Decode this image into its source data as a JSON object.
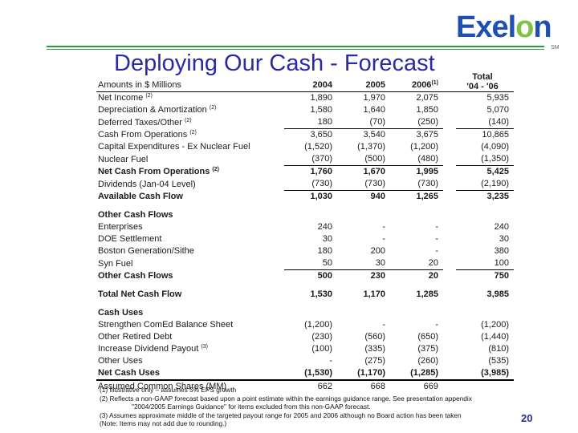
{
  "logo": {
    "text": "Exelon",
    "tm": "SM"
  },
  "title": "Deploying Our Cash - Forecast",
  "columns": {
    "label": "Amounts in $ Millions",
    "c2004": "2004",
    "c2005": "2005",
    "c2006": "2006",
    "c2006_note": "(1)",
    "total_line1": "Total",
    "total_line2": "'04 - '06"
  },
  "rows": [
    {
      "label": "Net Income",
      "note": "(2)",
      "v2004": "1,890",
      "v2005": "1,970",
      "v2006": "2,075",
      "total": "5,935"
    },
    {
      "label": "Depreciation & Amortization",
      "note": "(2)",
      "v2004": "1,580",
      "v2005": "1,640",
      "v2006": "1,850",
      "total": "5,070"
    },
    {
      "label": "Deferred Taxes/Other",
      "note": "(2)",
      "v2004": "180",
      "v2005": "(70)",
      "v2006": "(250)",
      "total": "(140)"
    },
    {
      "label": "Cash From Operations",
      "note": "(2)",
      "v2004": "3,650",
      "v2005": "3,540",
      "v2006": "3,675",
      "total": "10,865"
    },
    {
      "label": "Capital Expenditures - Ex Nuclear Fuel",
      "note": "",
      "v2004": "(1,520)",
      "v2005": "(1,370)",
      "v2006": "(1,200)",
      "total": "(4,090)"
    },
    {
      "label": "Nuclear Fuel",
      "note": "",
      "v2004": "(370)",
      "v2005": "(500)",
      "v2006": "(480)",
      "total": "(1,350)"
    },
    {
      "label": "Net Cash From Operations",
      "note": "(2)",
      "v2004": "1,760",
      "v2005": "1,670",
      "v2006": "1,995",
      "total": "5,425"
    },
    {
      "label": "Dividends (Jan-04 Level)",
      "note": "",
      "v2004": "(730)",
      "v2005": "(730)",
      "v2006": "(730)",
      "total": "(2,190)"
    },
    {
      "label": "Available Cash Flow",
      "note": "",
      "v2004": "1,030",
      "v2005": "940",
      "v2006": "1,265",
      "total": "3,235"
    },
    {
      "label": "Other Cash Flows",
      "note": "",
      "v2004": "",
      "v2005": "",
      "v2006": "",
      "total": ""
    },
    {
      "label": "Enterprises",
      "note": "",
      "v2004": "240",
      "v2005": "-",
      "v2006": "-",
      "total": "240"
    },
    {
      "label": "DOE Settlement",
      "note": "",
      "v2004": "30",
      "v2005": "-",
      "v2006": "-",
      "total": "30"
    },
    {
      "label": "Boston Generation/Sithe",
      "note": "",
      "v2004": "180",
      "v2005": "200",
      "v2006": "-",
      "total": "380"
    },
    {
      "label": "Syn Fuel",
      "note": "",
      "v2004": "50",
      "v2005": "30",
      "v2006": "20",
      "total": "100"
    },
    {
      "label": "Other Cash Flows",
      "note": "",
      "v2004": "500",
      "v2005": "230",
      "v2006": "20",
      "total": "750"
    },
    {
      "label": "Total Net Cash Flow",
      "note": "",
      "v2004": "1,530",
      "v2005": "1,170",
      "v2006": "1,285",
      "total": "3,985"
    },
    {
      "label": "Cash Uses",
      "note": "",
      "v2004": "",
      "v2005": "",
      "v2006": "",
      "total": ""
    },
    {
      "label": "Strengthen ComEd Balance Sheet",
      "note": "",
      "v2004": "(1,200)",
      "v2005": "-",
      "v2006": "-",
      "total": "(1,200)"
    },
    {
      "label": "Other Retired Debt",
      "note": "",
      "v2004": "(230)",
      "v2005": "(560)",
      "v2006": "(650)",
      "total": "(1,440)"
    },
    {
      "label": "Increase Dividend Payout",
      "note": "(3)",
      "v2004": "(100)",
      "v2005": "(335)",
      "v2006": "(375)",
      "total": "(810)"
    },
    {
      "label": "Other Uses",
      "note": "",
      "v2004": "-",
      "v2005": "(275)",
      "v2006": "(260)",
      "total": "(535)"
    },
    {
      "label": "Net Cash Uses",
      "note": "",
      "v2004": "(1,530)",
      "v2005": "(1,170)",
      "v2006": "(1,285)",
      "total": "(3,985)"
    },
    {
      "label": "Assumed Common Shares (MM)",
      "note": "",
      "v2004": "662",
      "v2005": "668",
      "v2006": "669",
      "total": ""
    }
  ],
  "footnotes": [
    "(1) Illustrative only – assumes 5% EPS growth",
    "(2) Reflects a non-GAAP forecast based upon a point estimate within the earnings guidance range. See presentation appendix",
    "\"2004/2005 Earnings Guidance\" for items excluded from this non-GAAP forecast.",
    "(3) Assumes approximate middle of the targeted payout range for 2005 and 2006 although no Board action has been taken",
    "(Note: Items may not add due to rounding.)"
  ],
  "page_number": "20",
  "colors": {
    "title": "#2a2aa8",
    "logo": "#1f4fb0",
    "logo_o": "#7dc242",
    "rule": "#2d9b3a"
  }
}
